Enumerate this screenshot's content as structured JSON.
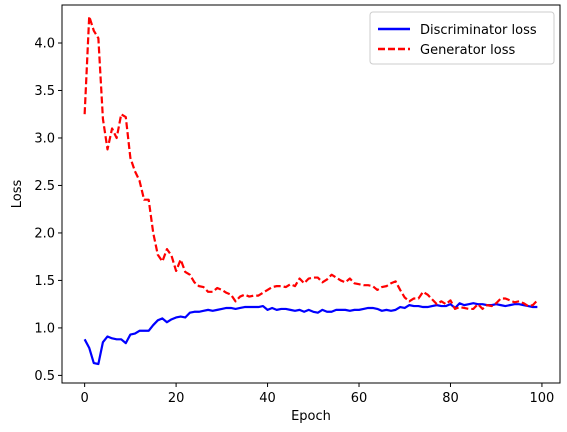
{
  "chart_data": {
    "type": "line",
    "xlabel": "Epoch",
    "ylabel": "Loss",
    "xlim": [
      -4.95,
      103.95
    ],
    "ylim": [
      0.42,
      4.4
    ],
    "xticks": [
      0,
      20,
      40,
      60,
      80,
      100
    ],
    "yticks": [
      0.5,
      1.0,
      1.5,
      2.0,
      2.5,
      3.0,
      3.5,
      4.0
    ],
    "legend_position": "top-right",
    "grid": false,
    "series": [
      {
        "name": "Discriminator loss",
        "color": "#0000ff",
        "style": "solid",
        "values": [
          0.88,
          0.79,
          0.63,
          0.62,
          0.85,
          0.91,
          0.89,
          0.88,
          0.88,
          0.84,
          0.93,
          0.94,
          0.97,
          0.97,
          0.97,
          1.03,
          1.08,
          1.1,
          1.06,
          1.09,
          1.11,
          1.12,
          1.11,
          1.16,
          1.17,
          1.17,
          1.18,
          1.19,
          1.18,
          1.19,
          1.2,
          1.21,
          1.21,
          1.2,
          1.21,
          1.22,
          1.22,
          1.22,
          1.22,
          1.23,
          1.19,
          1.21,
          1.19,
          1.2,
          1.2,
          1.19,
          1.18,
          1.19,
          1.17,
          1.19,
          1.17,
          1.16,
          1.19,
          1.17,
          1.17,
          1.19,
          1.19,
          1.19,
          1.18,
          1.19,
          1.19,
          1.2,
          1.21,
          1.21,
          1.2,
          1.18,
          1.19,
          1.18,
          1.19,
          1.22,
          1.21,
          1.24,
          1.23,
          1.23,
          1.22,
          1.22,
          1.23,
          1.24,
          1.23,
          1.23,
          1.25,
          1.21,
          1.26,
          1.24,
          1.25,
          1.26,
          1.25,
          1.25,
          1.24,
          1.24,
          1.25,
          1.24,
          1.23,
          1.24,
          1.25,
          1.25,
          1.24,
          1.23,
          1.22,
          1.22
        ]
      },
      {
        "name": "Generator loss",
        "color": "#ff0000",
        "style": "dashed",
        "values": [
          3.25,
          4.28,
          4.13,
          4.05,
          3.2,
          2.88,
          3.1,
          3.0,
          3.25,
          3.22,
          2.79,
          2.65,
          2.55,
          2.35,
          2.35,
          2.0,
          1.77,
          1.7,
          1.83,
          1.76,
          1.6,
          1.72,
          1.59,
          1.56,
          1.48,
          1.44,
          1.43,
          1.38,
          1.38,
          1.42,
          1.4,
          1.37,
          1.35,
          1.28,
          1.33,
          1.35,
          1.33,
          1.34,
          1.34,
          1.37,
          1.4,
          1.43,
          1.44,
          1.44,
          1.43,
          1.46,
          1.44,
          1.52,
          1.47,
          1.52,
          1.53,
          1.53,
          1.48,
          1.51,
          1.56,
          1.53,
          1.5,
          1.48,
          1.52,
          1.47,
          1.46,
          1.45,
          1.45,
          1.44,
          1.4,
          1.43,
          1.44,
          1.47,
          1.49,
          1.4,
          1.32,
          1.28,
          1.31,
          1.31,
          1.38,
          1.35,
          1.3,
          1.25,
          1.28,
          1.25,
          1.29,
          1.2,
          1.22,
          1.21,
          1.2,
          1.2,
          1.25,
          1.2,
          1.24,
          1.23,
          1.26,
          1.31,
          1.31,
          1.29,
          1.27,
          1.28,
          1.26,
          1.23,
          1.24,
          1.29
        ]
      }
    ]
  }
}
